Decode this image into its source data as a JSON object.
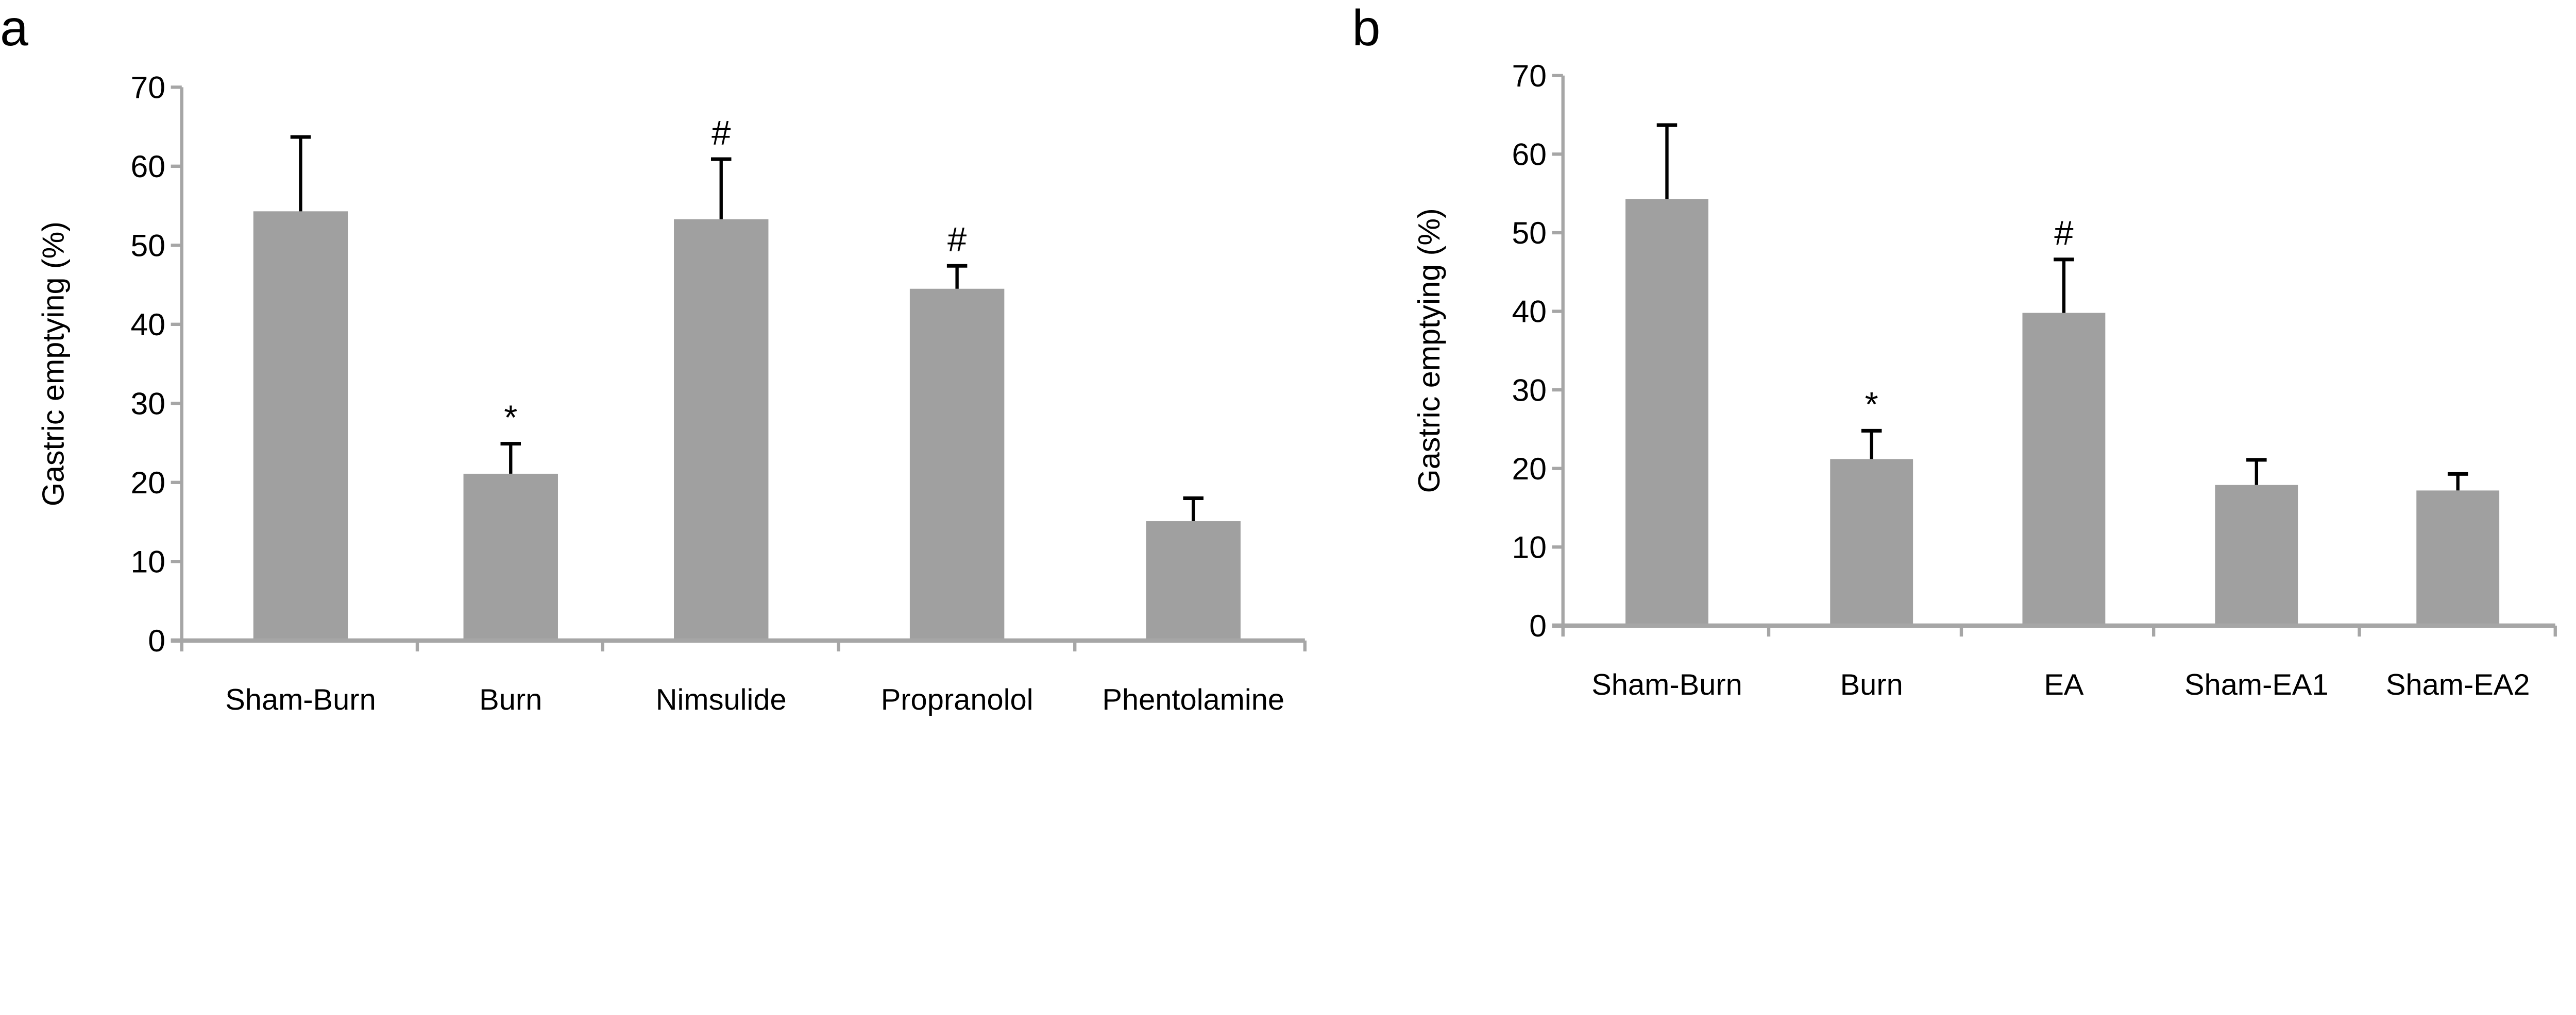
{
  "chart_data": [
    {
      "panel_label": "a",
      "type": "bar",
      "ylabel": "Gastric emptying (%)",
      "xlabel": "",
      "ylim": [
        0,
        70
      ],
      "yticks": [
        0,
        10,
        20,
        30,
        40,
        50,
        60,
        70
      ],
      "grid": false,
      "bar_color": "#a0a0a0",
      "axis_color": "#a6a6a6",
      "categories": [
        "Sham-Burn",
        "Burn",
        "Nimsulide",
        "Propranolol",
        "Phentolamine"
      ],
      "values": [
        54.3,
        21.1,
        53.3,
        44.5,
        15.1
      ],
      "error_upper": [
        9.4,
        3.8,
        7.6,
        2.9,
        2.9
      ],
      "annotations": [
        "",
        "*",
        "#",
        "#",
        ""
      ]
    },
    {
      "panel_label": "b",
      "type": "bar",
      "ylabel": "Gastric emptying (%)",
      "xlabel": "",
      "ylim": [
        0,
        70
      ],
      "yticks": [
        0,
        10,
        20,
        30,
        40,
        50,
        60,
        70
      ],
      "grid": false,
      "bar_color": "#a0a0a0",
      "axis_color": "#a6a6a6",
      "categories": [
        "Sham-Burn",
        "Burn",
        "EA",
        "Sham-EA1",
        "Sham-EA2"
      ],
      "values": [
        54.3,
        21.2,
        39.8,
        17.9,
        17.2
      ],
      "error_upper": [
        9.4,
        3.6,
        6.8,
        3.2,
        2.1
      ],
      "annotations": [
        "",
        "*",
        "#",
        "",
        ""
      ]
    }
  ]
}
